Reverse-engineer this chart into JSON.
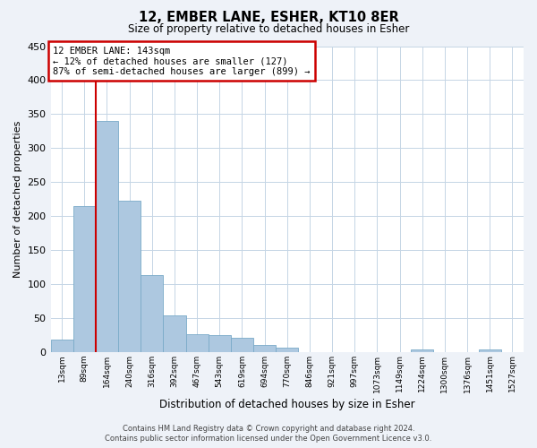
{
  "title": "12, EMBER LANE, ESHER, KT10 8ER",
  "subtitle": "Size of property relative to detached houses in Esher",
  "xlabel": "Distribution of detached houses by size in Esher",
  "ylabel": "Number of detached properties",
  "bar_labels": [
    "13sqm",
    "89sqm",
    "164sqm",
    "240sqm",
    "316sqm",
    "392sqm",
    "467sqm",
    "543sqm",
    "619sqm",
    "694sqm",
    "770sqm",
    "846sqm",
    "921sqm",
    "997sqm",
    "1073sqm",
    "1149sqm",
    "1224sqm",
    "1300sqm",
    "1376sqm",
    "1451sqm",
    "1527sqm"
  ],
  "bar_values": [
    18,
    215,
    340,
    222,
    113,
    53,
    26,
    24,
    20,
    10,
    6,
    0,
    0,
    0,
    0,
    0,
    3,
    0,
    0,
    3,
    0
  ],
  "bar_color": "#adc8e0",
  "bar_edge_color": "#7aaac8",
  "ylim": [
    0,
    450
  ],
  "yticks": [
    0,
    50,
    100,
    150,
    200,
    250,
    300,
    350,
    400,
    450
  ],
  "red_line_index": 2,
  "annotation_title": "12 EMBER LANE: 143sqm",
  "annotation_line1": "← 12% of detached houses are smaller (127)",
  "annotation_line2": "87% of semi-detached houses are larger (899) →",
  "footer_line1": "Contains HM Land Registry data © Crown copyright and database right 2024.",
  "footer_line2": "Contains public sector information licensed under the Open Government Licence v3.0.",
  "bg_color": "#eef2f8",
  "plot_bg_color": "#ffffff",
  "grid_color": "#c5d5e5",
  "red_line_color": "#cc0000",
  "annotation_box_color": "#ffffff",
  "annotation_box_edge": "#cc0000"
}
